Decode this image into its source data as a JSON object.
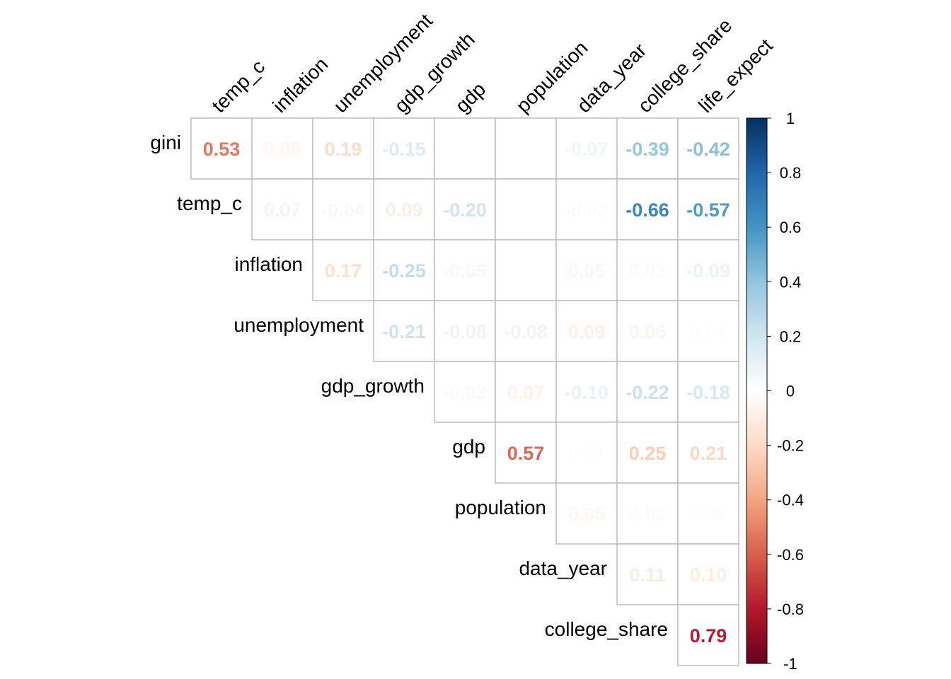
{
  "chart_data": {
    "type": "heatmap",
    "subtype": "correlation-matrix-upper",
    "title": "",
    "variables_rows": [
      "gini",
      "temp_c",
      "inflation",
      "unemployment",
      "gdp_growth",
      "gdp",
      "population",
      "data_year",
      "college_share"
    ],
    "variables_cols": [
      "temp_c",
      "inflation",
      "unemployment",
      "gdp_growth",
      "gdp",
      "population",
      "data_year",
      "college_share",
      "life_expect"
    ],
    "matrix": [
      [
        "0.53",
        "0.05",
        "0.19",
        "-0.15",
        "0.00",
        "0.00",
        "-0.07",
        "-0.39",
        "-0.42"
      ],
      [
        null,
        "0.07",
        "-0.04",
        "0.09",
        "-0.20",
        "0.00",
        "-0.02",
        "-0.66",
        "-0.57"
      ],
      [
        null,
        null,
        "0.17",
        "-0.25",
        "-0.05",
        "0.00",
        "0.05",
        "0.03",
        "-0.09"
      ],
      [
        null,
        null,
        null,
        "-0.21",
        "-0.08",
        "-0.08",
        "0.09",
        "0.06",
        "0.01"
      ],
      [
        null,
        null,
        null,
        null,
        "-0.03",
        "0.07",
        "-0.10",
        "-0.22",
        "-0.18"
      ],
      [
        null,
        null,
        null,
        null,
        null,
        "0.57",
        "0.01",
        "0.25",
        "0.21"
      ],
      [
        null,
        null,
        null,
        null,
        null,
        null,
        "0.05",
        "0.02",
        "0.01"
      ],
      [
        null,
        null,
        null,
        null,
        null,
        null,
        null,
        "0.11",
        "0.10"
      ],
      [
        null,
        null,
        null,
        null,
        null,
        null,
        null,
        null,
        "0.79"
      ]
    ],
    "colorbar": {
      "range": [
        -1,
        1
      ],
      "ticks": [
        "1",
        "0.8",
        "0.6",
        "0.4",
        "0.2",
        "0",
        "-0.2",
        "-0.4",
        "-0.6",
        "-0.8",
        "-1"
      ],
      "palette": [
        "#67001F",
        "#B2182B",
        "#D6604D",
        "#F4A582",
        "#FDDBC7",
        "#FFFFFF",
        "#D1E5F0",
        "#92C5DE",
        "#4393C3",
        "#2166AC",
        "#053061"
      ]
    },
    "grid": true
  }
}
